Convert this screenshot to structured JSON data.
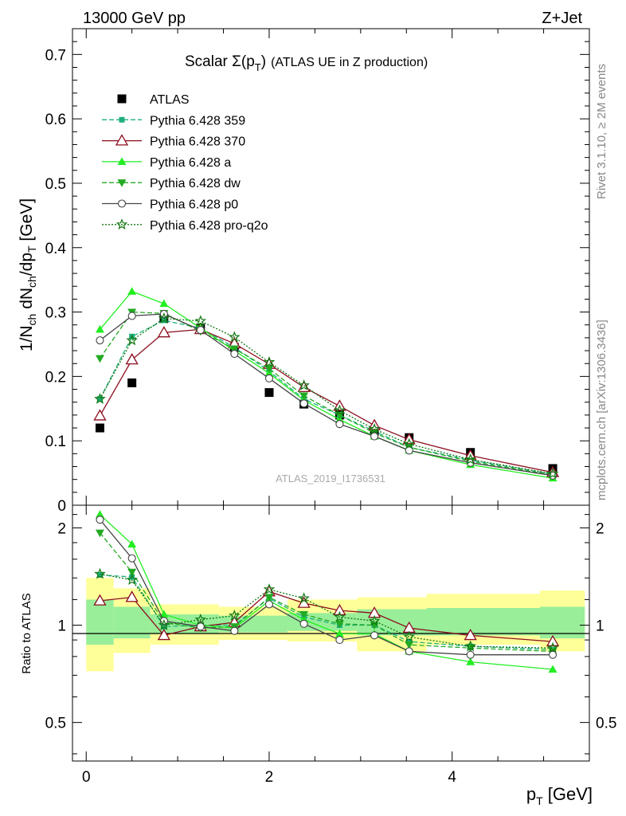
{
  "header": {
    "energy": "13000 GeV pp",
    "process": "Z+Jet"
  },
  "title": {
    "main": "Scalar Σ(p",
    "sub": "T",
    "close": ")",
    "rest": "(ATLAS UE in Z production)"
  },
  "side_labels": {
    "rivet": "Rivet 3.1.10, ≥ 2M events",
    "mcplots": "mcplots.cern.ch [arXiv:1306.3436]"
  },
  "watermark": "ATLAS_2019_I1736531",
  "axes": {
    "ylabel_top": "1/N_ch dN_ch/dp_T [GeV]",
    "ylabel_bottom": "Ratio to ATLAS",
    "xlabel": "p_T [GeV]",
    "top_ticks": [
      "0",
      "0.1",
      "0.2",
      "0.3",
      "0.4",
      "0.5",
      "0.6",
      "0.7"
    ],
    "bottom_ticks": [
      "0.5",
      "1",
      "2"
    ],
    "x_ticks": [
      "0",
      "2",
      "4"
    ]
  },
  "colors": {
    "data": "#000000",
    "p359": "#20b080",
    "p370": "#8b0c1e",
    "a": "#22ee22",
    "dw": "#22aa22",
    "p0": "#444444",
    "proq2o": "#117711",
    "band_outer": "#ffff99",
    "band_inner": "#99ee99"
  },
  "chart_data": {
    "type": "scatter",
    "x": [
      0.15,
      0.5,
      0.85,
      1.25,
      1.62,
      2.0,
      2.38,
      2.77,
      3.15,
      3.53,
      4.2,
      5.1
    ],
    "xlim": [
      -0.15,
      5.5
    ],
    "ylim_top": [
      0,
      0.74
    ],
    "ylim_ratio": [
      0.38,
      2.35
    ],
    "legend_position": "top-left",
    "series": [
      {
        "name": "ATLAS",
        "key": "data",
        "marker": "square",
        "values": [
          0.12,
          0.19,
          0.29,
          0.275,
          0.245,
          0.175,
          0.157,
          0.14,
          0.115,
          0.105,
          0.082,
          0.057
        ]
      },
      {
        "name": "Pythia 6.428 359",
        "key": "p359",
        "marker": "square-small",
        "dash": "6,3",
        "values": [
          0.165,
          0.262,
          0.287,
          0.275,
          0.245,
          0.208,
          0.165,
          0.14,
          0.115,
          0.09,
          0.07,
          0.048
        ]
      },
      {
        "name": "Pythia 6.428 370",
        "key": "p370",
        "marker": "triangle-open",
        "dash": "",
        "values": [
          0.139,
          0.226,
          0.268,
          0.273,
          0.251,
          0.219,
          0.183,
          0.154,
          0.124,
          0.102,
          0.077,
          0.051
        ]
      },
      {
        "name": "Pythia 6.428 a",
        "key": "a",
        "marker": "triangle-up",
        "dash": "",
        "values": [
          0.273,
          0.332,
          0.313,
          0.275,
          0.24,
          0.205,
          0.163,
          0.133,
          0.107,
          0.085,
          0.063,
          0.042
        ]
      },
      {
        "name": "Pythia 6.428 dw",
        "key": "dw",
        "marker": "triangle-down",
        "dash": "6,3",
        "values": [
          0.228,
          0.3,
          0.298,
          0.27,
          0.243,
          0.212,
          0.17,
          0.14,
          0.112,
          0.09,
          0.068,
          0.047
        ]
      },
      {
        "name": "Pythia 6.428 p0",
        "key": "p0",
        "marker": "circle-open",
        "dash": "",
        "values": [
          0.256,
          0.294,
          0.297,
          0.272,
          0.235,
          0.197,
          0.158,
          0.126,
          0.107,
          0.085,
          0.066,
          0.046
        ]
      },
      {
        "name": "Pythia 6.428 pro-q2o",
        "key": "proq2o",
        "marker": "star",
        "dash": "2,2",
        "values": [
          0.165,
          0.256,
          0.29,
          0.286,
          0.261,
          0.222,
          0.186,
          0.147,
          0.118,
          0.095,
          0.071,
          0.049
        ]
      }
    ],
    "ratio": {
      "bands_outer": [
        [
          0.0,
          0.3,
          0.72,
          1.4
        ],
        [
          0.3,
          0.7,
          0.82,
          1.3
        ],
        [
          0.7,
          1.45,
          0.87,
          1.16
        ],
        [
          1.45,
          2.2,
          0.9,
          1.14
        ],
        [
          2.2,
          2.96,
          0.89,
          1.2
        ],
        [
          2.96,
          3.72,
          0.83,
          1.22
        ],
        [
          3.72,
          4.96,
          0.87,
          1.25
        ],
        [
          4.96,
          5.45,
          0.83,
          1.28
        ]
      ],
      "bands_inner": [
        [
          0.0,
          0.3,
          0.87,
          1.2
        ],
        [
          0.3,
          0.7,
          0.91,
          1.14
        ],
        [
          0.7,
          1.45,
          0.94,
          1.08
        ],
        [
          1.45,
          2.2,
          0.95,
          1.07
        ],
        [
          2.2,
          2.96,
          0.96,
          1.09
        ],
        [
          2.96,
          3.72,
          0.93,
          1.12
        ],
        [
          3.72,
          4.96,
          0.93,
          1.13
        ],
        [
          4.96,
          5.45,
          0.91,
          1.14
        ]
      ],
      "series": {
        "p359": [
          1.43,
          1.41,
          0.99,
          1.0,
          1.0,
          1.21,
          1.06,
          1.0,
          1.0,
          0.89,
          0.86,
          0.84
        ],
        "p370": [
          1.19,
          1.22,
          0.93,
          0.99,
          1.02,
          1.27,
          1.17,
          1.11,
          1.09,
          0.98,
          0.93,
          0.89
        ],
        "a": [
          2.2,
          1.78,
          1.08,
          1.0,
          0.98,
          1.19,
          1.04,
          0.94,
          0.94,
          0.83,
          0.77,
          0.73
        ],
        "dw": [
          1.93,
          1.46,
          1.02,
          0.98,
          0.99,
          1.22,
          1.08,
          1.01,
          1.0,
          0.87,
          0.85,
          0.83
        ],
        "p0": [
          2.12,
          1.61,
          1.03,
          0.99,
          0.96,
          1.16,
          1.01,
          0.9,
          0.93,
          0.83,
          0.81,
          0.81
        ],
        "proq2o": [
          1.44,
          1.38,
          1.0,
          1.04,
          1.07,
          1.29,
          1.21,
          1.06,
          1.03,
          0.92,
          0.86,
          0.85
        ]
      }
    }
  }
}
